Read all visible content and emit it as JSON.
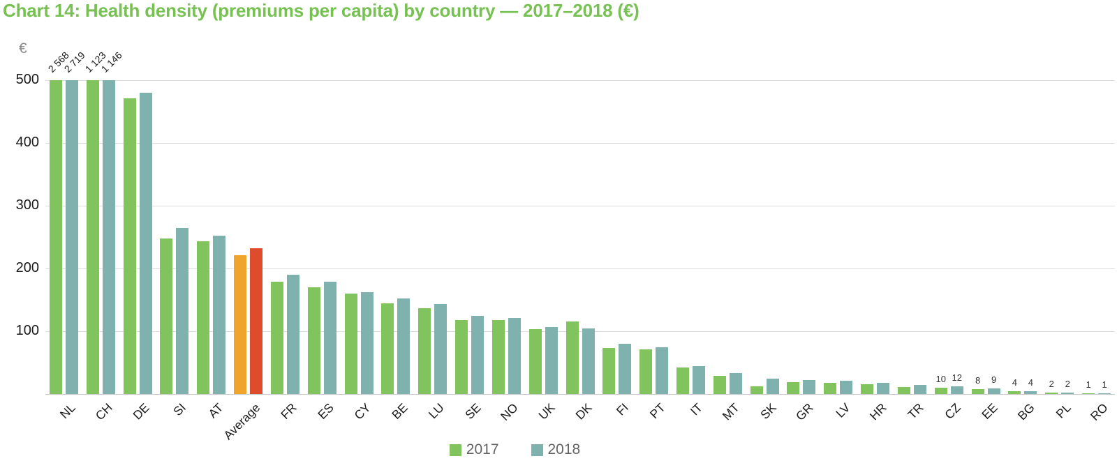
{
  "chart_data": {
    "type": "bar",
    "title": "Chart 14: Health density (premiums per capita) by country — 2017–2018 (€)",
    "y_unit": "€",
    "xlabel": "",
    "ylabel": "€",
    "ylim": [
      0,
      500
    ],
    "yticks": [
      100,
      200,
      300,
      400,
      500
    ],
    "grid": true,
    "legend_position": "bottom",
    "categories": [
      "NL",
      "CH",
      "DE",
      "SI",
      "AT",
      "Average",
      "FR",
      "ES",
      "CY",
      "BE",
      "LU",
      "SE",
      "NO",
      "UK",
      "DK",
      "FI",
      "PT",
      "IT",
      "MT",
      "SK",
      "GR",
      "LV",
      "HR",
      "TR",
      "CZ",
      "EE",
      "BG",
      "PL",
      "RO"
    ],
    "series": [
      {
        "name": "2017",
        "color": "#81C35C",
        "values": [
          2568,
          1123,
          471,
          248,
          243,
          221,
          179,
          170,
          160,
          145,
          137,
          118,
          118,
          103,
          116,
          73,
          71,
          42,
          29,
          12,
          19,
          18,
          16,
          11,
          10,
          8,
          4,
          2,
          1
        ]
      },
      {
        "name": "2018",
        "color": "#7FB2AF",
        "values": [
          2719,
          1146,
          480,
          264,
          252,
          232,
          190,
          179,
          162,
          152,
          143,
          124,
          121,
          107,
          104,
          80,
          75,
          44,
          33,
          24,
          22,
          21,
          18,
          14,
          12,
          9,
          4,
          2,
          1
        ]
      }
    ],
    "average_highlight": {
      "category": "Average",
      "colors": [
        "#F0A42C",
        "#DD4C2B"
      ]
    },
    "clipped_bar_labels": [
      {
        "category": "NL",
        "labels": [
          "2 568",
          "2 719"
        ]
      },
      {
        "category": "CH",
        "labels": [
          "1 123",
          "1 146"
        ]
      }
    ],
    "value_labels": [
      {
        "category": "CZ",
        "labels": [
          "10",
          "12"
        ]
      },
      {
        "category": "EE",
        "labels": [
          "8",
          "9"
        ]
      },
      {
        "category": "BG",
        "labels": [
          "4",
          "4"
        ]
      },
      {
        "category": "PL",
        "labels": [
          "2",
          "2"
        ]
      },
      {
        "category": "RO",
        "labels": [
          "1",
          "1"
        ]
      }
    ],
    "colors": {
      "title_green": "#77C152",
      "axis_text": "#1a1a1a",
      "unit_text": "#8a8a8a",
      "gridline": "#dcdcdc",
      "legend_text": "#646464"
    }
  }
}
